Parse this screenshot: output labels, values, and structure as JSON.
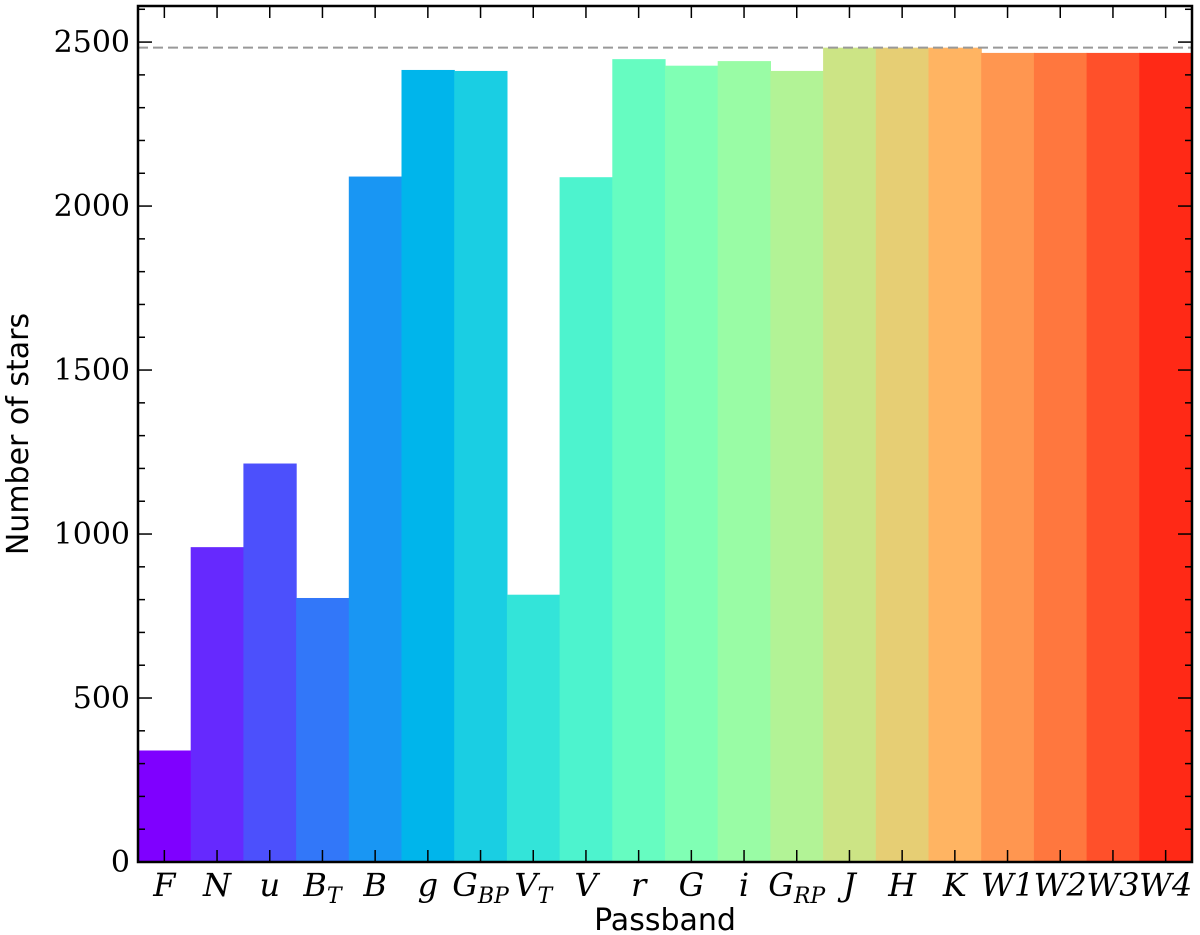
{
  "chart_data": {
    "type": "bar",
    "title": "",
    "xlabel": "Passband",
    "ylabel": "Number of stars",
    "ylim": [
      0,
      2610
    ],
    "yticks": [
      0,
      500,
      1000,
      1500,
      2000,
      2500
    ],
    "reference_line": {
      "value": 2483,
      "style": "dashed",
      "color": "#999999"
    },
    "grid": false,
    "categories": [
      {
        "main": "F",
        "sub": ""
      },
      {
        "main": "N",
        "sub": ""
      },
      {
        "main": "u",
        "sub": ""
      },
      {
        "main": "B",
        "sub": "T"
      },
      {
        "main": "B",
        "sub": ""
      },
      {
        "main": "g",
        "sub": ""
      },
      {
        "main": "G",
        "sub": "BP"
      },
      {
        "main": "V",
        "sub": "T"
      },
      {
        "main": "V",
        "sub": ""
      },
      {
        "main": "r",
        "sub": ""
      },
      {
        "main": "G",
        "sub": ""
      },
      {
        "main": "i",
        "sub": ""
      },
      {
        "main": "G",
        "sub": "RP"
      },
      {
        "main": "J",
        "sub": ""
      },
      {
        "main": "H",
        "sub": ""
      },
      {
        "main": "K",
        "sub": ""
      },
      {
        "main": "W1",
        "sub": ""
      },
      {
        "main": "W2",
        "sub": ""
      },
      {
        "main": "W3",
        "sub": ""
      },
      {
        "main": "W4",
        "sub": ""
      }
    ],
    "values": [
      340,
      960,
      1215,
      805,
      2090,
      2415,
      2412,
      815,
      2088,
      2448,
      2428,
      2442,
      2412,
      2483,
      2483,
      2483,
      2467,
      2467,
      2467,
      2467
    ],
    "colors": [
      "#7f00ff",
      "#6629fe",
      "#4c50fc",
      "#3277f9",
      "#1996f3",
      "#00b5eb",
      "#1acee3",
      "#33e4d9",
      "#4df3ce",
      "#66fcc1",
      "#80ffb4",
      "#99fca5",
      "#b2f396",
      "#cce485",
      "#e6ce74",
      "#ffb462",
      "#ff9650",
      "#ff773e",
      "#ff502a",
      "#ff2916"
    ]
  }
}
